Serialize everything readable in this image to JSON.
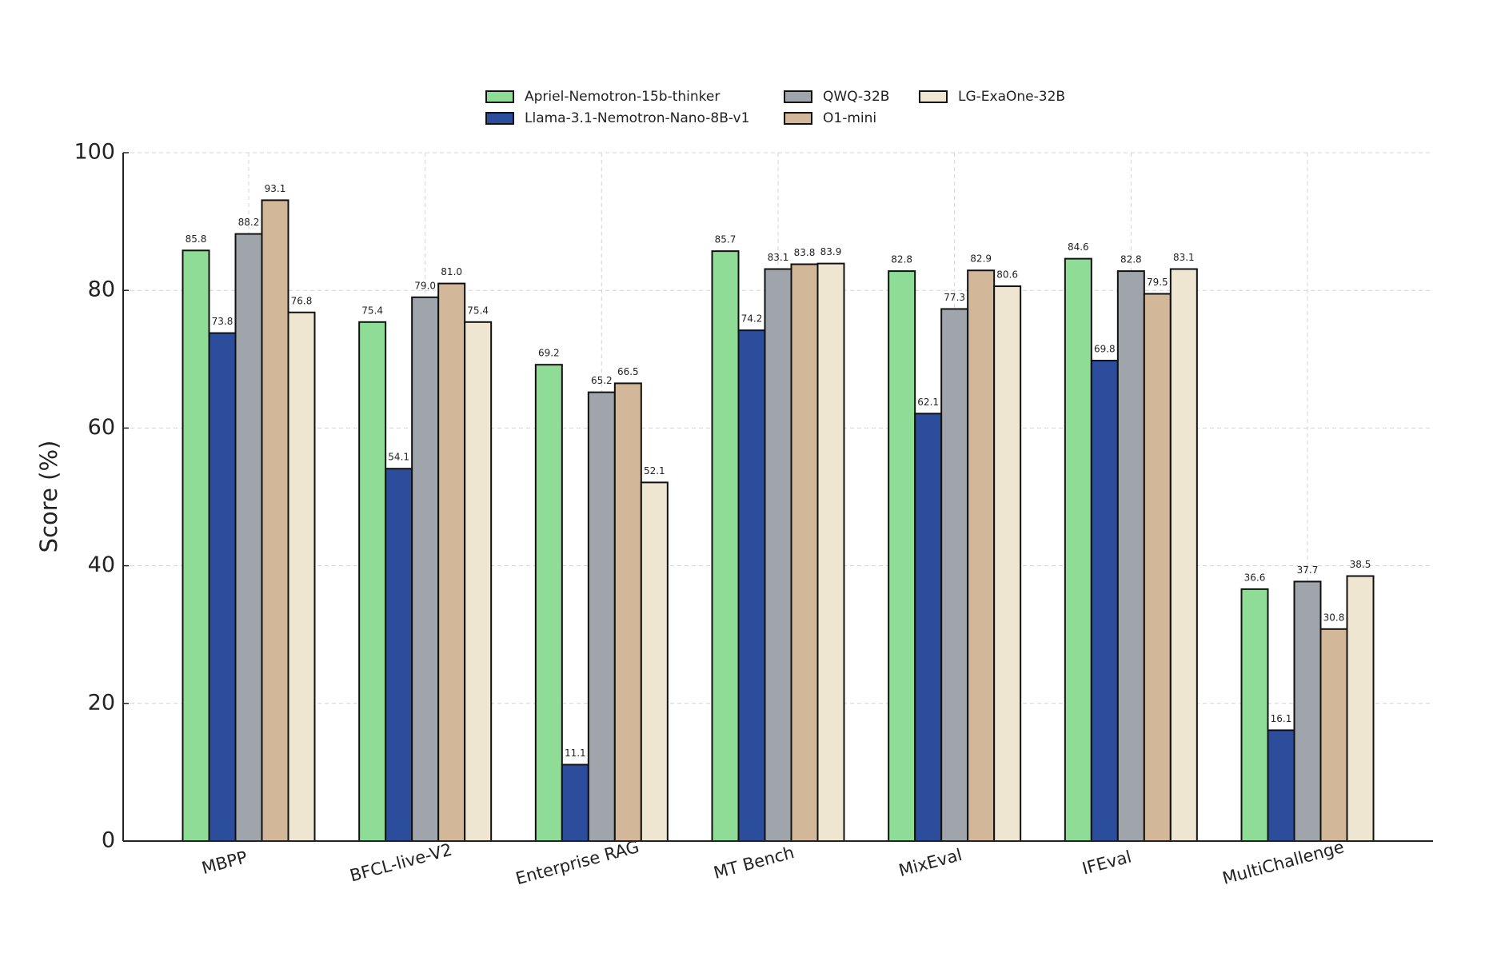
{
  "chart_data": {
    "type": "bar",
    "y_label": "Score (%)",
    "categories": [
      "MBPP",
      "BFCL-live-V2",
      "Enterprise RAG",
      "MT Bench",
      "MixEval",
      "IFEval",
      "MultiChallenge"
    ],
    "series": [
      {
        "name": "Apriel-Nemotron-15b-thinker",
        "color": "#8fdc96",
        "values": [
          85.8,
          75.4,
          69.2,
          85.7,
          82.8,
          84.6,
          36.6
        ]
      },
      {
        "name": "Llama-3.1-Nemotron-Nano-8B-v1",
        "color": "#2c4c9c",
        "values": [
          73.8,
          54.1,
          11.1,
          74.2,
          62.1,
          69.8,
          16.1
        ]
      },
      {
        "name": "QWQ-32B",
        "color": "#a0a5ab",
        "values": [
          88.2,
          79.0,
          65.2,
          83.1,
          77.3,
          82.8,
          37.7
        ],
        "value_labels": [
          "88.2",
          "79.0",
          "65.2",
          "83.1",
          "77.3",
          "82.8",
          "37.7"
        ]
      },
      {
        "name": "O1-mini",
        "color": "#d2b799",
        "values": [
          93.1,
          81.0,
          66.5,
          83.8,
          82.9,
          79.5,
          30.8
        ],
        "value_labels": [
          "93.1",
          "81.0",
          "66.5",
          "83.8",
          "82.9",
          "79.5",
          "30.8"
        ]
      },
      {
        "name": "LG-ExaOne-32B",
        "color": "#efe6d2",
        "values": [
          76.8,
          75.4,
          52.1,
          83.9,
          80.6,
          83.1,
          38.5
        ]
      }
    ],
    "ylim": [
      0,
      100
    ],
    "yticks": [
      0,
      20,
      40,
      60,
      80,
      100
    ],
    "grid": true,
    "legend": "top"
  }
}
